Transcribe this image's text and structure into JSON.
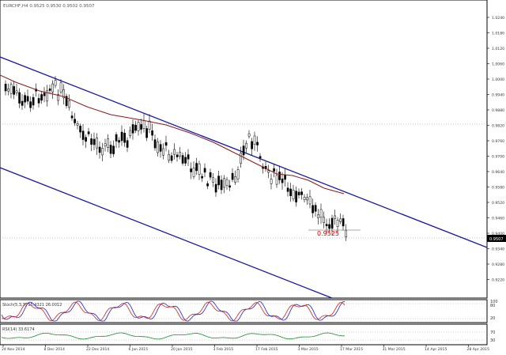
{
  "header": {
    "symbol_line": "EURCHF,H4 0.9525 0.9530 0.9502 0.9507"
  },
  "price_label": "0.9525",
  "price_axis": {
    "ticks": [
      "1.0240",
      "1.0180",
      "1.0120",
      "1.0060",
      "1.0000",
      "0.9940",
      "0.9880",
      "0.9820",
      "0.9760",
      "0.9700",
      "0.9640",
      "0.9580",
      "0.9520",
      "0.9460",
      "0.9400",
      "0.9340",
      "0.9280",
      "0.9220"
    ],
    "current": "0.9507"
  },
  "stoch": {
    "label": "Stoch(5,3,3) 15.4321 26.0012",
    "levels": [
      "80",
      "20"
    ],
    "scale_max": "100",
    "scale_min": "0"
  },
  "rsi": {
    "label": "RSI(14) 33.6174",
    "levels": [
      "70",
      "30"
    ]
  },
  "time_axis": {
    "labels": [
      "24 Nov 2014",
      "8 Dec 2014",
      "22 Dec 2014",
      "6 Jan 2015",
      "20 Jan 2015",
      "3 Feb 2015",
      "17 Feb 2015",
      "3 Mar 2015",
      "17 Mar 2015",
      "31 Mar 2015",
      "14 Apr 2015",
      "28 Apr 2015"
    ]
  },
  "colors": {
    "background": "#ffffff",
    "channel": "#1a1aa0",
    "moving_average": "#8b1a1a",
    "candle": "#000000",
    "price_label": "#d00000",
    "stoch_main": "#2020c0",
    "stoch_signal": "#d02020",
    "rsi": "#1a8a2a"
  }
}
